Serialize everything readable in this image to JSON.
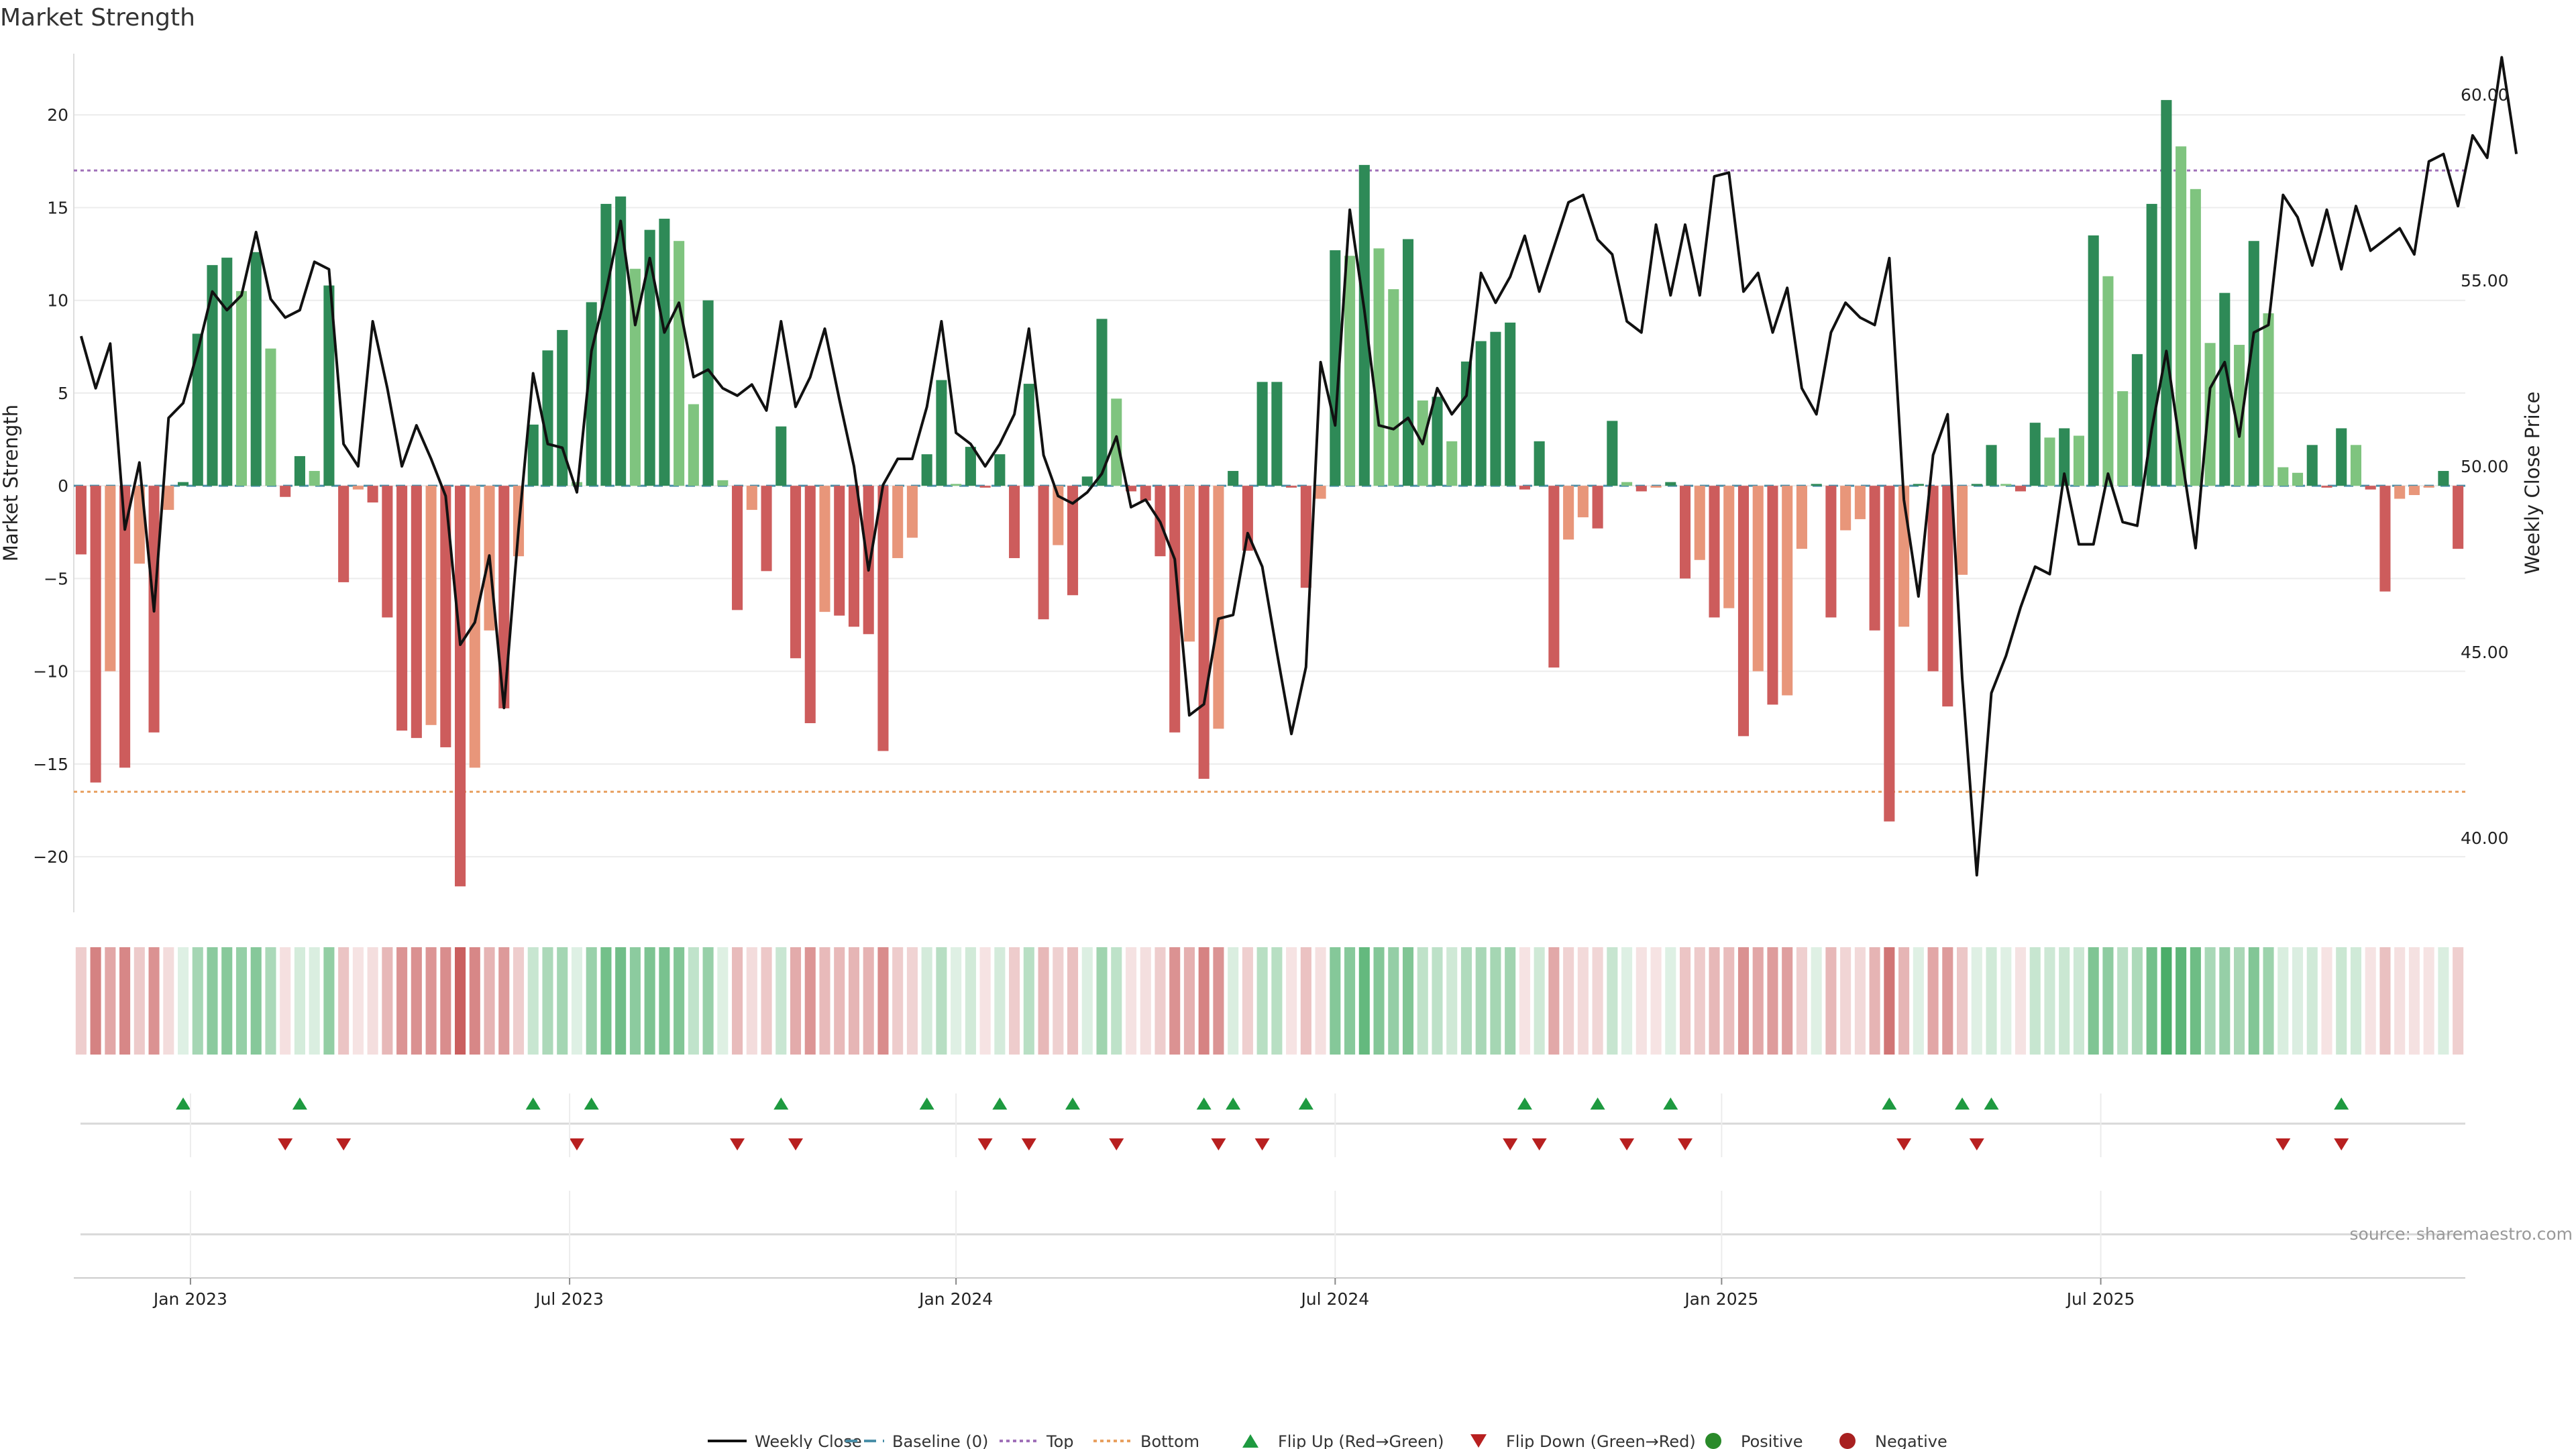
{
  "title": "Market Strength",
  "source": "source: sharemaestro.com",
  "colors": {
    "strong_up": "#2e8a57",
    "weak_up": "#7fc47f",
    "strong_down": "#cd5c5c",
    "weak_down": "#e8967a",
    "baseline": "#4a8fa8",
    "top": "#a070b8",
    "bottom": "#e8a060",
    "close": "#111111",
    "flip_up": "#1e9a40",
    "flip_down": "#b82020",
    "positive": "#2a8a2a",
    "negative": "#a82020"
  },
  "legend": [
    {
      "label": "Weekly Close",
      "icon": "line-solid",
      "color": "#111111"
    },
    {
      "label": "Baseline (0)",
      "icon": "line-dashed",
      "color": "#4a8fa8"
    },
    {
      "label": "Top",
      "icon": "line-dotted",
      "color": "#a070b8"
    },
    {
      "label": "Bottom",
      "icon": "line-dotted",
      "color": "#e8a060"
    },
    {
      "label": "Flip Up (Red→Green)",
      "icon": "triangle-up-icon",
      "color": "#1e9a40"
    },
    {
      "label": "Flip Down (Green→Red)",
      "icon": "triangle-down-icon",
      "color": "#b82020"
    },
    {
      "label": "Positive",
      "icon": "circle-icon",
      "color": "#2a8a2a"
    },
    {
      "label": "Negative",
      "icon": "circle-icon",
      "color": "#a82020"
    }
  ],
  "chart_data": {
    "type": "bar",
    "title": "Market Strength",
    "ylabel": "Market Strength",
    "y2label": "Weekly Close Price",
    "ylim": [
      -23,
      23.3
    ],
    "y2lim": [
      38.0,
      61.1
    ],
    "yticks": [
      20,
      15,
      10,
      5,
      0,
      -5,
      -10,
      -15,
      -20
    ],
    "y2ticks": [
      "60.00",
      "55.00",
      "50.00",
      "45.00",
      "40.00"
    ],
    "y2tick_values": [
      60,
      55,
      50,
      45,
      40
    ],
    "xticks": [
      {
        "label": "Jan 2023",
        "index": 8
      },
      {
        "label": "Jul 2023",
        "index": 34
      },
      {
        "label": "Jan 2024",
        "index": 60.5
      },
      {
        "label": "Jul 2024",
        "index": 86.5
      },
      {
        "label": "Jan 2025",
        "index": 113
      },
      {
        "label": "Jul 2025",
        "index": 139
      }
    ],
    "top_threshold": 17.0,
    "bottom_threshold": -16.5,
    "baseline": 0,
    "strength": [
      -3.7,
      -16,
      -10,
      -15.2,
      -4.2,
      -13.3,
      -1.3,
      0.2,
      8.2,
      11.9,
      12.3,
      10.5,
      12.6,
      7.4,
      -0.6,
      1.6,
      0.8,
      10.8,
      -5.2,
      -0.2,
      -0.9,
      -7.1,
      -13.2,
      -13.6,
      -12.9,
      -14.1,
      -21.6,
      -15.2,
      -7.8,
      -12,
      -3.8,
      3.3,
      7.3,
      8.4,
      0.2,
      9.9,
      15.2,
      15.6,
      11.7,
      13.8,
      14.4,
      13.2,
      4.4,
      10,
      0.3,
      -6.7,
      -1.3,
      -4.6,
      3.2,
      -9.3,
      -12.8,
      -6.8,
      -7,
      -7.6,
      -8,
      -14.3,
      -3.9,
      -2.8,
      1.7,
      5.7,
      0.1,
      2.1,
      -0.1,
      1.7,
      -3.9,
      5.5,
      -7.2,
      -3.2,
      -5.9,
      0.5,
      9,
      4.7,
      -0.3,
      -0.8,
      -3.8,
      -13.3,
      -8.4,
      -15.8,
      -13.1,
      0.8,
      -3.5,
      5.6,
      5.6,
      -0.1,
      -5.5,
      -0.7,
      12.7,
      12.4,
      17.3,
      12.8,
      10.6,
      13.3,
      4.6,
      4.8,
      2.4,
      6.7,
      7.8,
      8.3,
      8.8,
      -0.2,
      2.4,
      -9.8,
      -2.9,
      -1.7,
      -2.3,
      3.5,
      0.2,
      -0.3,
      -0.1,
      0.2,
      -5,
      -4,
      -7.1,
      -6.6,
      -13.5,
      -10,
      -11.8,
      -11.3,
      -3.4,
      0.1,
      -7.1,
      -2.4,
      -1.8,
      -7.8,
      -18.1,
      -7.6,
      0.1,
      -10,
      -11.9,
      -4.8,
      0.1,
      2.2,
      0.1,
      -0.3,
      3.4,
      2.6,
      3.1,
      2.7,
      13.5,
      11.3,
      5.1,
      7.1,
      15.2,
      20.8,
      18.3,
      16,
      7.7,
      10.4,
      7.6,
      13.2,
      9.3,
      1,
      0.7,
      2.2,
      -0.1,
      3.1,
      2.2,
      -0.2,
      -5.7,
      -0.7,
      -0.5,
      -0.1,
      0.8,
      -3.4
    ],
    "weekly_close": [
      53.5,
      52.1,
      53.3,
      48.3,
      50.1,
      46.1,
      51.3,
      51.7,
      53.1,
      54.7,
      54.2,
      54.6,
      56.3,
      54.5,
      54.0,
      54.2,
      55.5,
      55.3,
      50.6,
      50.0,
      53.9,
      52.1,
      50.0,
      51.1,
      50.2,
      49.2,
      45.2,
      45.8,
      47.6,
      43.5,
      48.3,
      52.5,
      50.6,
      50.5,
      49.3,
      53.1,
      54.7,
      56.6,
      53.8,
      55.6,
      53.6,
      54.4,
      52.4,
      52.6,
      52.1,
      51.9,
      52.2,
      51.5,
      53.9,
      51.6,
      52.4,
      53.7,
      51.8,
      50.0,
      47.2,
      49.5,
      50.2,
      50.2,
      51.6,
      53.9,
      50.9,
      50.6,
      50.0,
      50.6,
      51.4,
      53.7,
      50.3,
      49.2,
      49.0,
      49.3,
      49.8,
      50.8,
      48.9,
      49.1,
      48.5,
      47.5,
      43.3,
      43.6,
      45.9,
      46.0,
      48.2,
      47.3,
      45.0,
      42.8,
      44.6,
      52.8,
      51.1,
      56.9,
      54.2,
      51.1,
      51.0,
      51.3,
      50.6,
      52.1,
      51.4,
      51.9,
      55.2,
      54.4,
      55.1,
      56.2,
      54.7,
      55.9,
      57.1,
      57.3,
      56.1,
      55.7,
      53.9,
      53.6,
      56.5,
      54.6,
      56.5,
      54.6,
      57.8,
      57.9,
      54.7,
      55.2,
      53.6,
      54.8,
      52.1,
      51.4,
      53.6,
      54.4,
      54.0,
      53.8,
      55.6,
      49.1,
      46.5,
      50.3,
      51.4,
      44.3,
      39.0,
      43.9,
      44.9,
      46.2,
      47.3,
      47.1,
      49.8,
      47.9,
      47.9,
      49.8,
      48.5,
      48.4,
      51.0,
      53.1,
      50.4,
      47.8,
      52.1,
      52.8,
      50.8,
      53.6,
      53.8,
      57.3,
      56.7,
      55.4,
      56.9,
      55.3,
      57.0,
      55.8,
      56.1,
      56.4,
      55.7,
      58.2,
      58.4,
      57.0,
      58.9,
      58.3,
      61.0,
      58.4
    ],
    "flip_up": [
      7,
      15,
      31,
      35,
      48,
      58,
      63,
      68,
      77,
      79,
      84,
      99,
      104,
      109,
      124,
      129,
      131,
      155
    ],
    "flip_down": [
      14,
      18,
      34,
      45,
      49,
      62,
      65,
      71,
      78,
      81,
      98,
      100,
      106,
      110,
      125,
      130,
      151,
      155
    ]
  }
}
